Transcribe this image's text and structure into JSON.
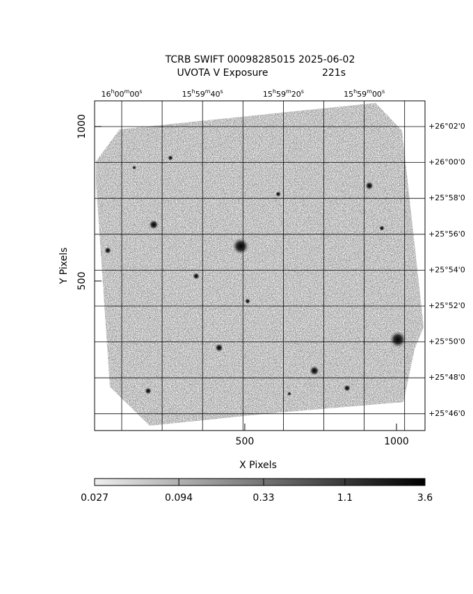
{
  "chart_data": {
    "type": "image",
    "title": "TCRB SWIFT 00098285015 2025-06-02",
    "subtitle": "UVOTA V Exposure",
    "exposure": "221s",
    "x_label": "X Pixels",
    "y_label": "Y Pixels",
    "xlim": [
      5,
      1094
    ],
    "ylim": [
      16,
      1083
    ],
    "xticks": [
      500,
      1000
    ],
    "yticks": [
      500,
      1000
    ],
    "ra_ticks": [
      "16h00m00s",
      null,
      "15h59m40s",
      null,
      "15h59m20s",
      null,
      "15h59m00s",
      null
    ],
    "dec_ticks": [
      "+26°02'0",
      "+26°00'0",
      "+25°58'0",
      "+25°56'0",
      "+25°54'0",
      "+25°52'0",
      "+25°50'0",
      "+25°48'0",
      "+25°46'0"
    ],
    "colorbar": {
      "lim": [
        0.027,
        3.6
      ],
      "ticks": [
        0.027,
        0.094,
        0.33,
        1.1,
        3.6
      ],
      "log": true
    }
  }
}
